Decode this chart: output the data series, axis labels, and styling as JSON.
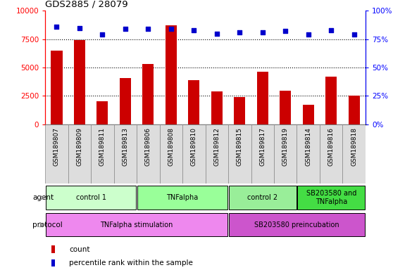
{
  "title": "GDS2885 / 28079",
  "samples": [
    "GSM189807",
    "GSM189809",
    "GSM189811",
    "GSM189813",
    "GSM189806",
    "GSM189808",
    "GSM189810",
    "GSM189812",
    "GSM189815",
    "GSM189817",
    "GSM189819",
    "GSM189814",
    "GSM189816",
    "GSM189818"
  ],
  "counts": [
    6500,
    7400,
    2000,
    4100,
    5300,
    8700,
    3900,
    2900,
    2400,
    4600,
    2950,
    1700,
    4200,
    2500
  ],
  "percentiles": [
    86,
    85,
    79,
    84,
    84,
    84,
    83,
    80,
    81,
    81,
    82,
    79,
    83,
    79
  ],
  "bar_color": "#cc0000",
  "dot_color": "#0000cc",
  "ylim_left": [
    0,
    10000
  ],
  "ylim_right": [
    0,
    100
  ],
  "yticks_left": [
    0,
    2500,
    5000,
    7500,
    10000
  ],
  "yticks_right": [
    0,
    25,
    50,
    75,
    100
  ],
  "ytick_labels_left": [
    "0",
    "2500",
    "5000",
    "7500",
    "10000"
  ],
  "ytick_labels_right": [
    "0%",
    "25%",
    "50%",
    "75%",
    "100%"
  ],
  "agent_groups": [
    {
      "label": "control 1",
      "start": 0,
      "end": 4,
      "color": "#ccffcc"
    },
    {
      "label": "TNFalpha",
      "start": 4,
      "end": 8,
      "color": "#99ff99"
    },
    {
      "label": "control 2",
      "start": 8,
      "end": 11,
      "color": "#99ee99"
    },
    {
      "label": "SB203580 and\nTNFalpha",
      "start": 11,
      "end": 14,
      "color": "#44dd44"
    }
  ],
  "protocol_groups": [
    {
      "label": "TNFalpha stimulation",
      "start": 0,
      "end": 8,
      "color": "#ee88ee"
    },
    {
      "label": "SB203580 preincubation",
      "start": 8,
      "end": 14,
      "color": "#cc55cc"
    }
  ],
  "agent_label": "agent",
  "protocol_label": "protocol",
  "legend_count_color": "#cc0000",
  "legend_dot_color": "#0000cc",
  "background_color": "#ffffff",
  "sample_bg_color": "#dddddd",
  "sample_border_color": "#888888"
}
